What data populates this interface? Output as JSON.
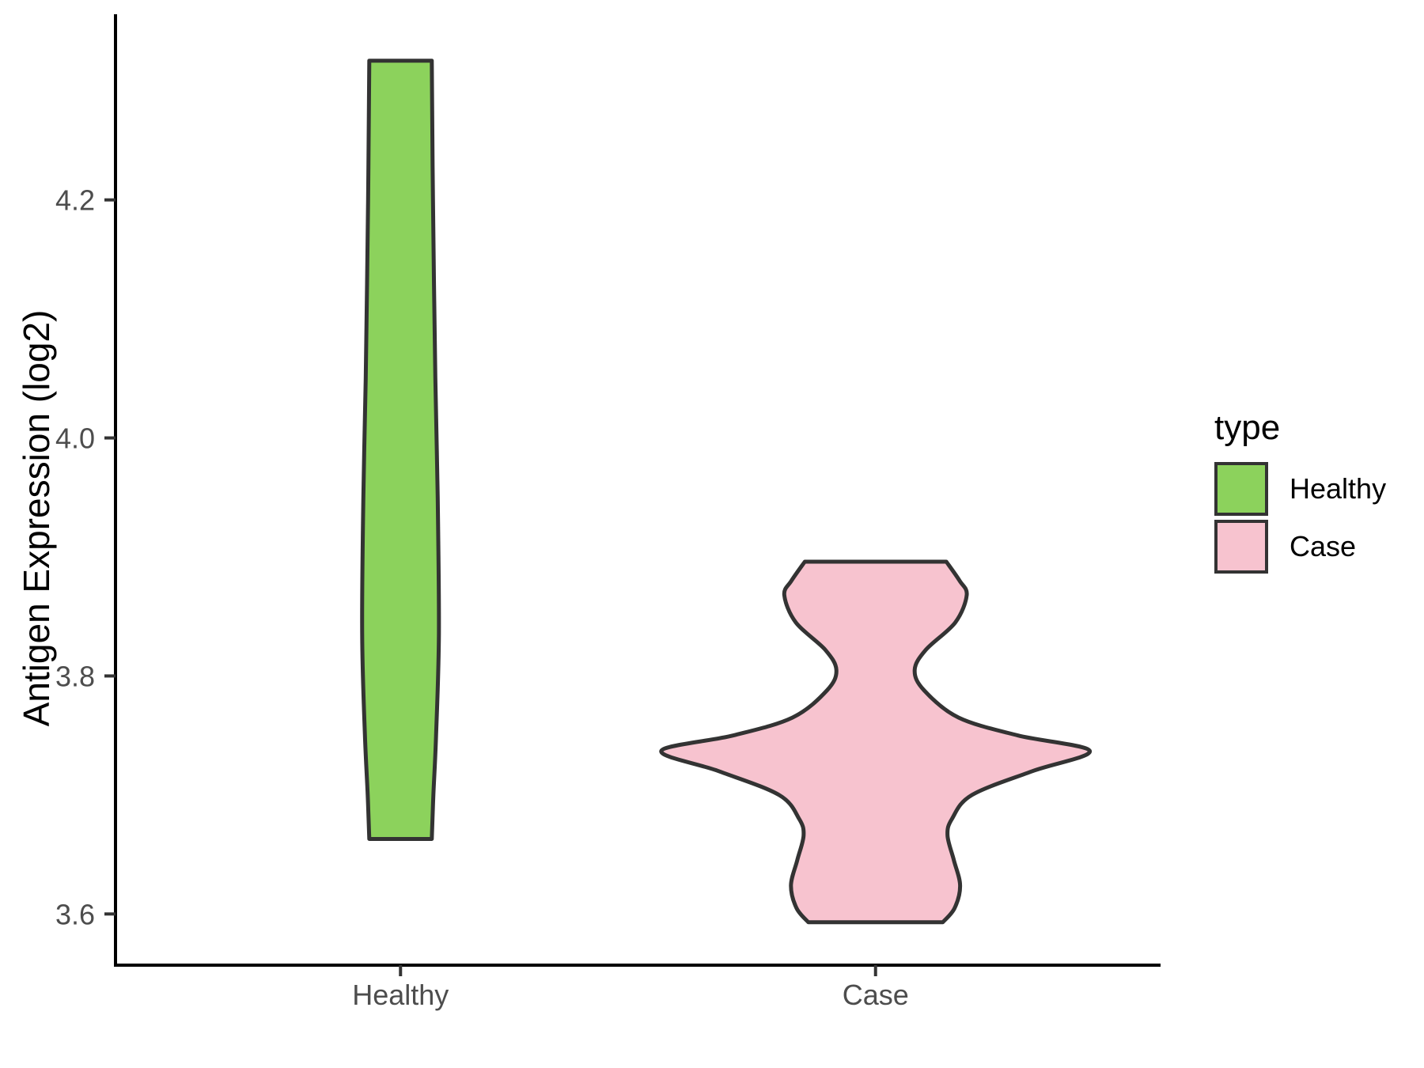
{
  "figure": {
    "background": "#FFFFFF",
    "title": ""
  },
  "chart_data": {
    "type": "violin",
    "title": "",
    "xlabel": "",
    "ylabel": "Antigen Expression (log2)",
    "categories": [
      "Healthy",
      "Case"
    ],
    "y_ticks": [
      {
        "value": 3.6,
        "label": "3.6"
      },
      {
        "value": 3.8,
        "label": "3.8"
      },
      {
        "value": 4.0,
        "label": "4.0"
      },
      {
        "value": 4.2,
        "label": "4.2"
      }
    ],
    "ylim": [
      3.557,
      4.356
    ],
    "grid": false,
    "legend_position": "right",
    "legend_title": "type",
    "colors": {
      "axis_line": "#000000",
      "tick_mark": "#333333",
      "tick_text": "#4d4d4d",
      "violin_outline": "#333333"
    },
    "series": [
      {
        "name": "Healthy",
        "fill": "#8CD25C",
        "outline": "#333333",
        "data_range": [
          3.663,
          4.317
        ],
        "profile": [
          [
            4.317,
            0.0658
          ],
          [
            4.2,
            0.0683
          ],
          [
            4.05,
            0.0733
          ],
          [
            3.95,
            0.0783
          ],
          [
            3.835,
            0.0808
          ],
          [
            3.75,
            0.0749
          ],
          [
            3.7,
            0.0691
          ],
          [
            3.663,
            0.0658
          ]
        ]
      },
      {
        "name": "Case",
        "fill": "#F7C3CF",
        "outline": "#333333",
        "data_range": [
          3.593,
          3.896
        ],
        "profile": [
          [
            3.896,
            0.149
          ],
          [
            3.88,
            0.177
          ],
          [
            3.868,
            0.192
          ],
          [
            3.845,
            0.168
          ],
          [
            3.822,
            0.106
          ],
          [
            3.805,
            0.0824
          ],
          [
            3.788,
            0.102
          ],
          [
            3.765,
            0.175
          ],
          [
            3.75,
            0.3
          ],
          [
            3.737,
            0.451
          ],
          [
            3.72,
            0.33
          ],
          [
            3.7,
            0.203
          ],
          [
            3.68,
            0.161
          ],
          [
            3.666,
            0.1515
          ],
          [
            3.645,
            0.165
          ],
          [
            3.624,
            0.178
          ],
          [
            3.605,
            0.1665
          ],
          [
            3.593,
            0.1415
          ]
        ]
      }
    ]
  },
  "legend": {
    "title": "type",
    "items": [
      {
        "label": "Healthy",
        "color": "#8CD25C"
      },
      {
        "label": "Case",
        "color": "#F7C3CF"
      }
    ]
  }
}
